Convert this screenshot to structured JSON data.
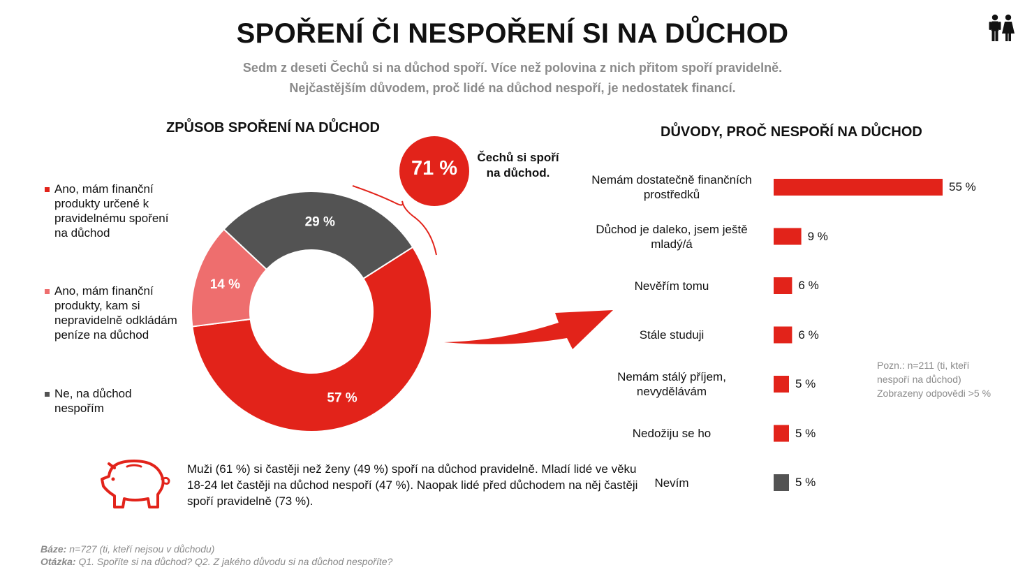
{
  "header": {
    "title": "SPOŘENÍ ČI NESPOŘENÍ SI NA DŮCHOD",
    "subtitle_line1": "Sedm z deseti Čechů si na důchod spoří. Více než polovina z nich přitom spoří pravidelně.",
    "subtitle_line2": "Nejčastějším důvodem, proč lidé na důchod nespoří, je nedostatek financí."
  },
  "highlight": {
    "value": "71 %",
    "text_line1": "Čechů si spoří",
    "text_line2": "na důchod."
  },
  "insight": "Muži (61 %) si častěji než ženy (49 %) spoří na důchod pravidelně. Mladí lidé ve věku 18-24 let častěji na důchod nespoří (47 %). Naopak lidé před důchodem na něj častěji spoří pravidelně (73 %).",
  "note": {
    "line1": "Pozn.: n=211 (ti, kteří",
    "line2": "nespoří na důchod)",
    "line3": "Zobrazeny odpovědi >5 %"
  },
  "footer": {
    "base_label": "Báze:",
    "base_text": " n=727 (ti, kteří nejsou v důchodu)",
    "question_label": "Otázka:",
    "question_text": " Q1. Spoříte si na důchod? Q2. Z jakého důvodu si na důchod nespoříte?"
  },
  "icons": {
    "people": "people-icon",
    "pig": "piggy-bank-icon",
    "arrow": "arrow-icon"
  },
  "colors": {
    "red": "#e2231a",
    "light_red": "#ee6e6e",
    "gray": "#535353",
    "text_gray": "#8a8a8a"
  },
  "chart_data": [
    {
      "type": "pie",
      "title": "ZPŮSOB SPOŘENÍ NA DŮCHOD",
      "donut": true,
      "start_angle_deg": 57.6,
      "slices": [
        {
          "label": "Ano, mám finanční produkty určené k pravidelnému spoření na důchod",
          "value": 57,
          "display": "57 %",
          "color": "#e2231a"
        },
        {
          "label": "Ano, mám finanční produkty, kam si nepravidelně odkládám peníze na důchod",
          "value": 14,
          "display": "14 %",
          "color": "#ee6e6e"
        },
        {
          "label": "Ne, na důchod nespořím",
          "value": 29,
          "display": "29 %",
          "color": "#535353"
        }
      ],
      "legend": "left"
    },
    {
      "type": "bar",
      "orientation": "horizontal",
      "title": "DŮVODY, PROČ NESPOŘÍ NA DŮCHOD",
      "categories": [
        "Nemám dostatečně finančních prostředků",
        "Důchod je daleko, jsem ještě mladý/á",
        "Nevěřím tomu",
        "Stále studuji",
        "Nemám stálý příjem, nevydělávám",
        "Nedožiju se ho",
        "Nevím"
      ],
      "values": [
        55,
        9,
        6,
        6,
        5,
        5,
        5
      ],
      "display": [
        "55 %",
        "9 %",
        "6 %",
        "6 %",
        "5 %",
        "5 %",
        "5 %"
      ],
      "colors": [
        "#e2231a",
        "#e2231a",
        "#e2231a",
        "#e2231a",
        "#e2231a",
        "#e2231a",
        "#535353"
      ],
      "xlim": [
        0,
        55
      ]
    }
  ]
}
